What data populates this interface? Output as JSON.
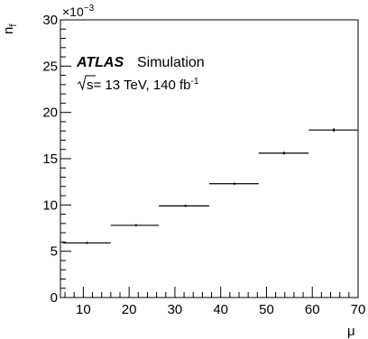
{
  "chart_data": {
    "type": "scatter",
    "xlabel": "μ",
    "ylabel_base": "n",
    "ylabel_sub": "f",
    "y_multiplier_base": "×10",
    "y_multiplier_exp": "−3",
    "xlim": [
      5,
      70
    ],
    "ylim": [
      0,
      30
    ],
    "x_ticks": [
      10,
      20,
      30,
      40,
      50,
      60,
      70
    ],
    "y_ticks": [
      0,
      5,
      10,
      15,
      20,
      25,
      30
    ],
    "annotations": {
      "experiment": "ATLAS",
      "label": "Simulation",
      "energy_prefix": "s",
      "energy_text": "= 13 TeV, 140 fb",
      "lumi_exp": "-1"
    },
    "bins": [
      {
        "x_low": 5.5,
        "x_high": 16,
        "x": 10.8,
        "y": 5.9,
        "y_err": 0.1
      },
      {
        "x_low": 16,
        "x_high": 26.5,
        "x": 21.5,
        "y": 7.8,
        "y_err": 0.1
      },
      {
        "x_low": 26.5,
        "x_high": 37.5,
        "x": 32.3,
        "y": 9.9,
        "y_err": 0.1
      },
      {
        "x_low": 37.5,
        "x_high": 48.3,
        "x": 43.0,
        "y": 12.3,
        "y_err": 0.1
      },
      {
        "x_low": 48.3,
        "x_high": 59.2,
        "x": 53.8,
        "y": 15.6,
        "y_err": 0.15
      },
      {
        "x_low": 59.2,
        "x_high": 70,
        "x": 64.7,
        "y": 18.1,
        "y_err": 0.2
      }
    ]
  }
}
